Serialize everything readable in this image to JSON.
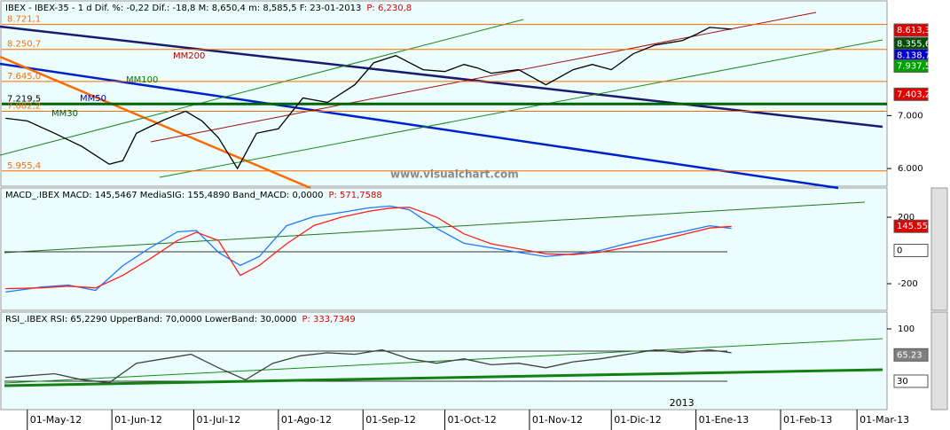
{
  "chart_data": [
    {
      "type": "line",
      "panel": "price",
      "title": "IBEX - IBEX-35 -  1 d Dif. %: -0,22 Dif.: -18,8 M: 8,650,4 m: 8,585,5 F: 23-01-2013",
      "title_p": "P: 6,230,8",
      "watermark": "www.visualchart.com",
      "xlim": [
        -10,
        315
      ],
      "ylim": [
        5667,
        9167
      ],
      "yticks": [
        {
          "value": 6000,
          "label": "6.000"
        },
        {
          "value": 7000,
          "label": "7.000"
        }
      ],
      "x": [
        -8,
        0,
        10,
        20,
        30,
        35,
        40,
        50,
        58,
        64,
        70,
        77,
        84,
        92,
        101,
        110,
        120,
        127,
        135,
        145,
        153,
        160,
        165,
        170,
        180,
        190,
        200,
        207,
        214,
        222,
        230,
        240,
        245,
        250,
        258
      ],
      "values": [
        6950,
        6900,
        6667,
        6417,
        6083,
        6150,
        6667,
        6917,
        7083,
        6900,
        6583,
        6000,
        6667,
        6750,
        7333,
        7250,
        7583,
        8000,
        8133,
        7867,
        7833,
        7967,
        7900,
        7800,
        7867,
        7583,
        7867,
        7967,
        7867,
        8167,
        8333,
        8417,
        8533,
        8667,
        8633
      ],
      "color": "#000000",
      "levels": [
        {
          "value": 8721.1,
          "label": "8.721,1",
          "color": "#ff6a00"
        },
        {
          "value": 8250.7,
          "label": "8.250,7",
          "color": "#ff6a00"
        },
        {
          "value": 7645.0,
          "label": "7.645,0",
          "color": "#ff6a00"
        },
        {
          "value": 7219.5,
          "label": "7.219,5",
          "color": "#006400"
        },
        {
          "value": 7082.2,
          "label": "7.082,2",
          "color": "#ff6a00"
        },
        {
          "value": 5955.4,
          "label": "5.955,4",
          "color": "#ff6a00"
        }
      ],
      "value_boxes": [
        {
          "value": 8613.3,
          "label": "8.613,3",
          "color": "#e00000"
        },
        {
          "value": 8355.6,
          "label": "8.355,6",
          "color": "#004d00"
        },
        {
          "value": 8138.7,
          "label": "8.138,7",
          "color": "#0000c8"
        },
        {
          "value": 7937.5,
          "label": "7.937,5",
          "color": "#00a000"
        },
        {
          "value": 7403.2,
          "label": "7.403,2",
          "color": "#e00000"
        }
      ],
      "annotations": [
        {
          "text": "MM200",
          "color": "#c00000"
        },
        {
          "text": "MM100",
          "color": "#008000"
        },
        {
          "text": "MM50",
          "color": "#0000c0"
        },
        {
          "text": "MM30",
          "color": "#006000"
        }
      ]
    },
    {
      "type": "line",
      "panel": "macd",
      "title": "MACD_.IBEX MACD: 145,5467 MediaSIG: 155,4890 Band_MACD: 0,0000",
      "title_p": "P: 571,7588",
      "xlim": [
        -10,
        315
      ],
      "ylim": [
        -360,
        376
      ],
      "yticks": [
        200,
        -200
      ],
      "x": [
        -8,
        5,
        15,
        25,
        35,
        45,
        55,
        62,
        70,
        78,
        85,
        95,
        105,
        115,
        125,
        133,
        140,
        150,
        160,
        170,
        180,
        190,
        200,
        210,
        220,
        230,
        240,
        250,
        258
      ],
      "series": [
        {
          "color": "#1e78ff",
          "values": [
            -250,
            -220,
            -208,
            -240,
            -91,
            16,
            112,
            120,
            -11,
            -90,
            -37,
            149,
            203,
            229,
            256,
            267,
            245,
            133,
            43,
            16,
            -11,
            -37,
            -20,
            0,
            43,
            80,
            112,
            149,
            133
          ]
        },
        {
          "color": "#ff2020",
          "values": [
            -230,
            -225,
            -215,
            -225,
            -150,
            -50,
            60,
            110,
            60,
            -150,
            -90,
            40,
            150,
            200,
            235,
            255,
            260,
            200,
            100,
            40,
            10,
            -20,
            -25,
            -10,
            20,
            55,
            95,
            135,
            145
          ]
        }
      ],
      "value_boxes": [
        {
          "value": 145.55,
          "label": "145.55",
          "color": "#e00000"
        },
        {
          "value": 0,
          "label": "0",
          "color": "#ffffff"
        }
      ]
    },
    {
      "type": "line",
      "panel": "rsi",
      "title": "RSI_.IBEX RSI: 65,2290 UpperBand: 70,0000 LowerBand: 30,0000",
      "title_p": "P: 333,7349",
      "xlim": [
        -10,
        315
      ],
      "ylim": [
        -8,
        122.5
      ],
      "yticks": [
        100
      ],
      "x": [
        -8,
        10,
        20,
        30,
        40,
        50,
        60,
        70,
        80,
        90,
        100,
        110,
        120,
        130,
        140,
        150,
        160,
        170,
        180,
        190,
        200,
        210,
        220,
        230,
        240,
        250,
        258
      ],
      "values": [
        35,
        40,
        32,
        28,
        54,
        60,
        66,
        48,
        32,
        54,
        64,
        68,
        66,
        72,
        60,
        54,
        60,
        52,
        54,
        48,
        56,
        60,
        66,
        72,
        68,
        72,
        68
      ],
      "color": "#404040",
      "value_boxes": [
        {
          "value": 65.23,
          "label": "65.23",
          "color": "#808080"
        },
        {
          "value": 30,
          "label": "30",
          "color": "#ffffff"
        }
      ],
      "year_label": {
        "value": 245,
        "label": "2013"
      },
      "xticks": [
        {
          "value": 0,
          "label": "01-May-12"
        },
        {
          "value": 31,
          "label": "01-Jun-12"
        },
        {
          "value": 61,
          "label": "01-Jul-12"
        },
        {
          "value": 92,
          "label": "01-Ago-12"
        },
        {
          "value": 123,
          "label": "01-Sep-12"
        },
        {
          "value": 153,
          "label": "01-Oct-12"
        },
        {
          "value": 184,
          "label": "01-Nov-12"
        },
        {
          "value": 214,
          "label": "01-Dic-12"
        },
        {
          "value": 245,
          "label": "01-Ene-13"
        },
        {
          "value": 276,
          "label": "01-Feb-13"
        },
        {
          "value": 304,
          "label": "01-Mar-13"
        }
      ]
    }
  ]
}
